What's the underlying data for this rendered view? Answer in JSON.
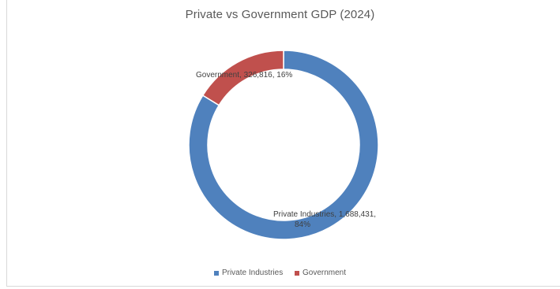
{
  "chart_data": {
    "type": "pie",
    "variant": "doughnut",
    "title": "Private vs Government GDP (2024)",
    "slices": [
      {
        "name": "Private Industries",
        "value": 1688431,
        "label": "Private Industries, 1,688,431,",
        "label_pct": "84%",
        "color": "#4f81bd"
      },
      {
        "name": "Government",
        "value": 326816,
        "label": "Government, 326,816, 16%",
        "color": "#c0504d"
      }
    ],
    "legend": {
      "position": "bottom",
      "items": [
        "Private Industries",
        "Government"
      ]
    }
  }
}
